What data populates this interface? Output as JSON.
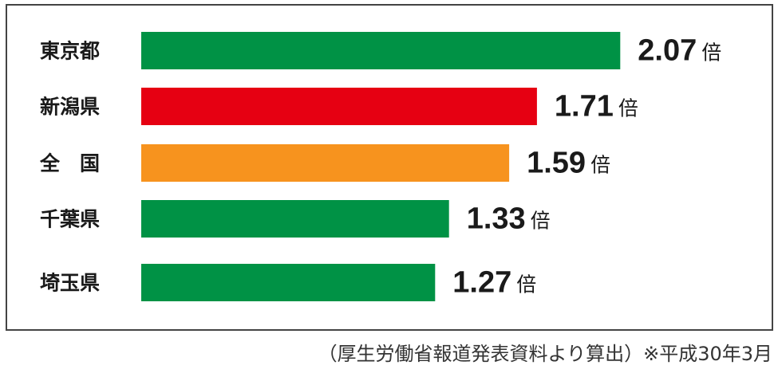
{
  "chart_data": {
    "type": "bar",
    "categories": [
      "東京都",
      "新潟県",
      "全　国",
      "千葉県",
      "埼玉県"
    ],
    "values": [
      2.07,
      1.71,
      1.59,
      1.33,
      1.27
    ],
    "colors": [
      "#009245",
      "#e60012",
      "#f7931e",
      "#009245",
      "#009245"
    ],
    "unit": "倍",
    "note": "（厚生労働省報道発表資料より算出）※平成30年3月"
  }
}
